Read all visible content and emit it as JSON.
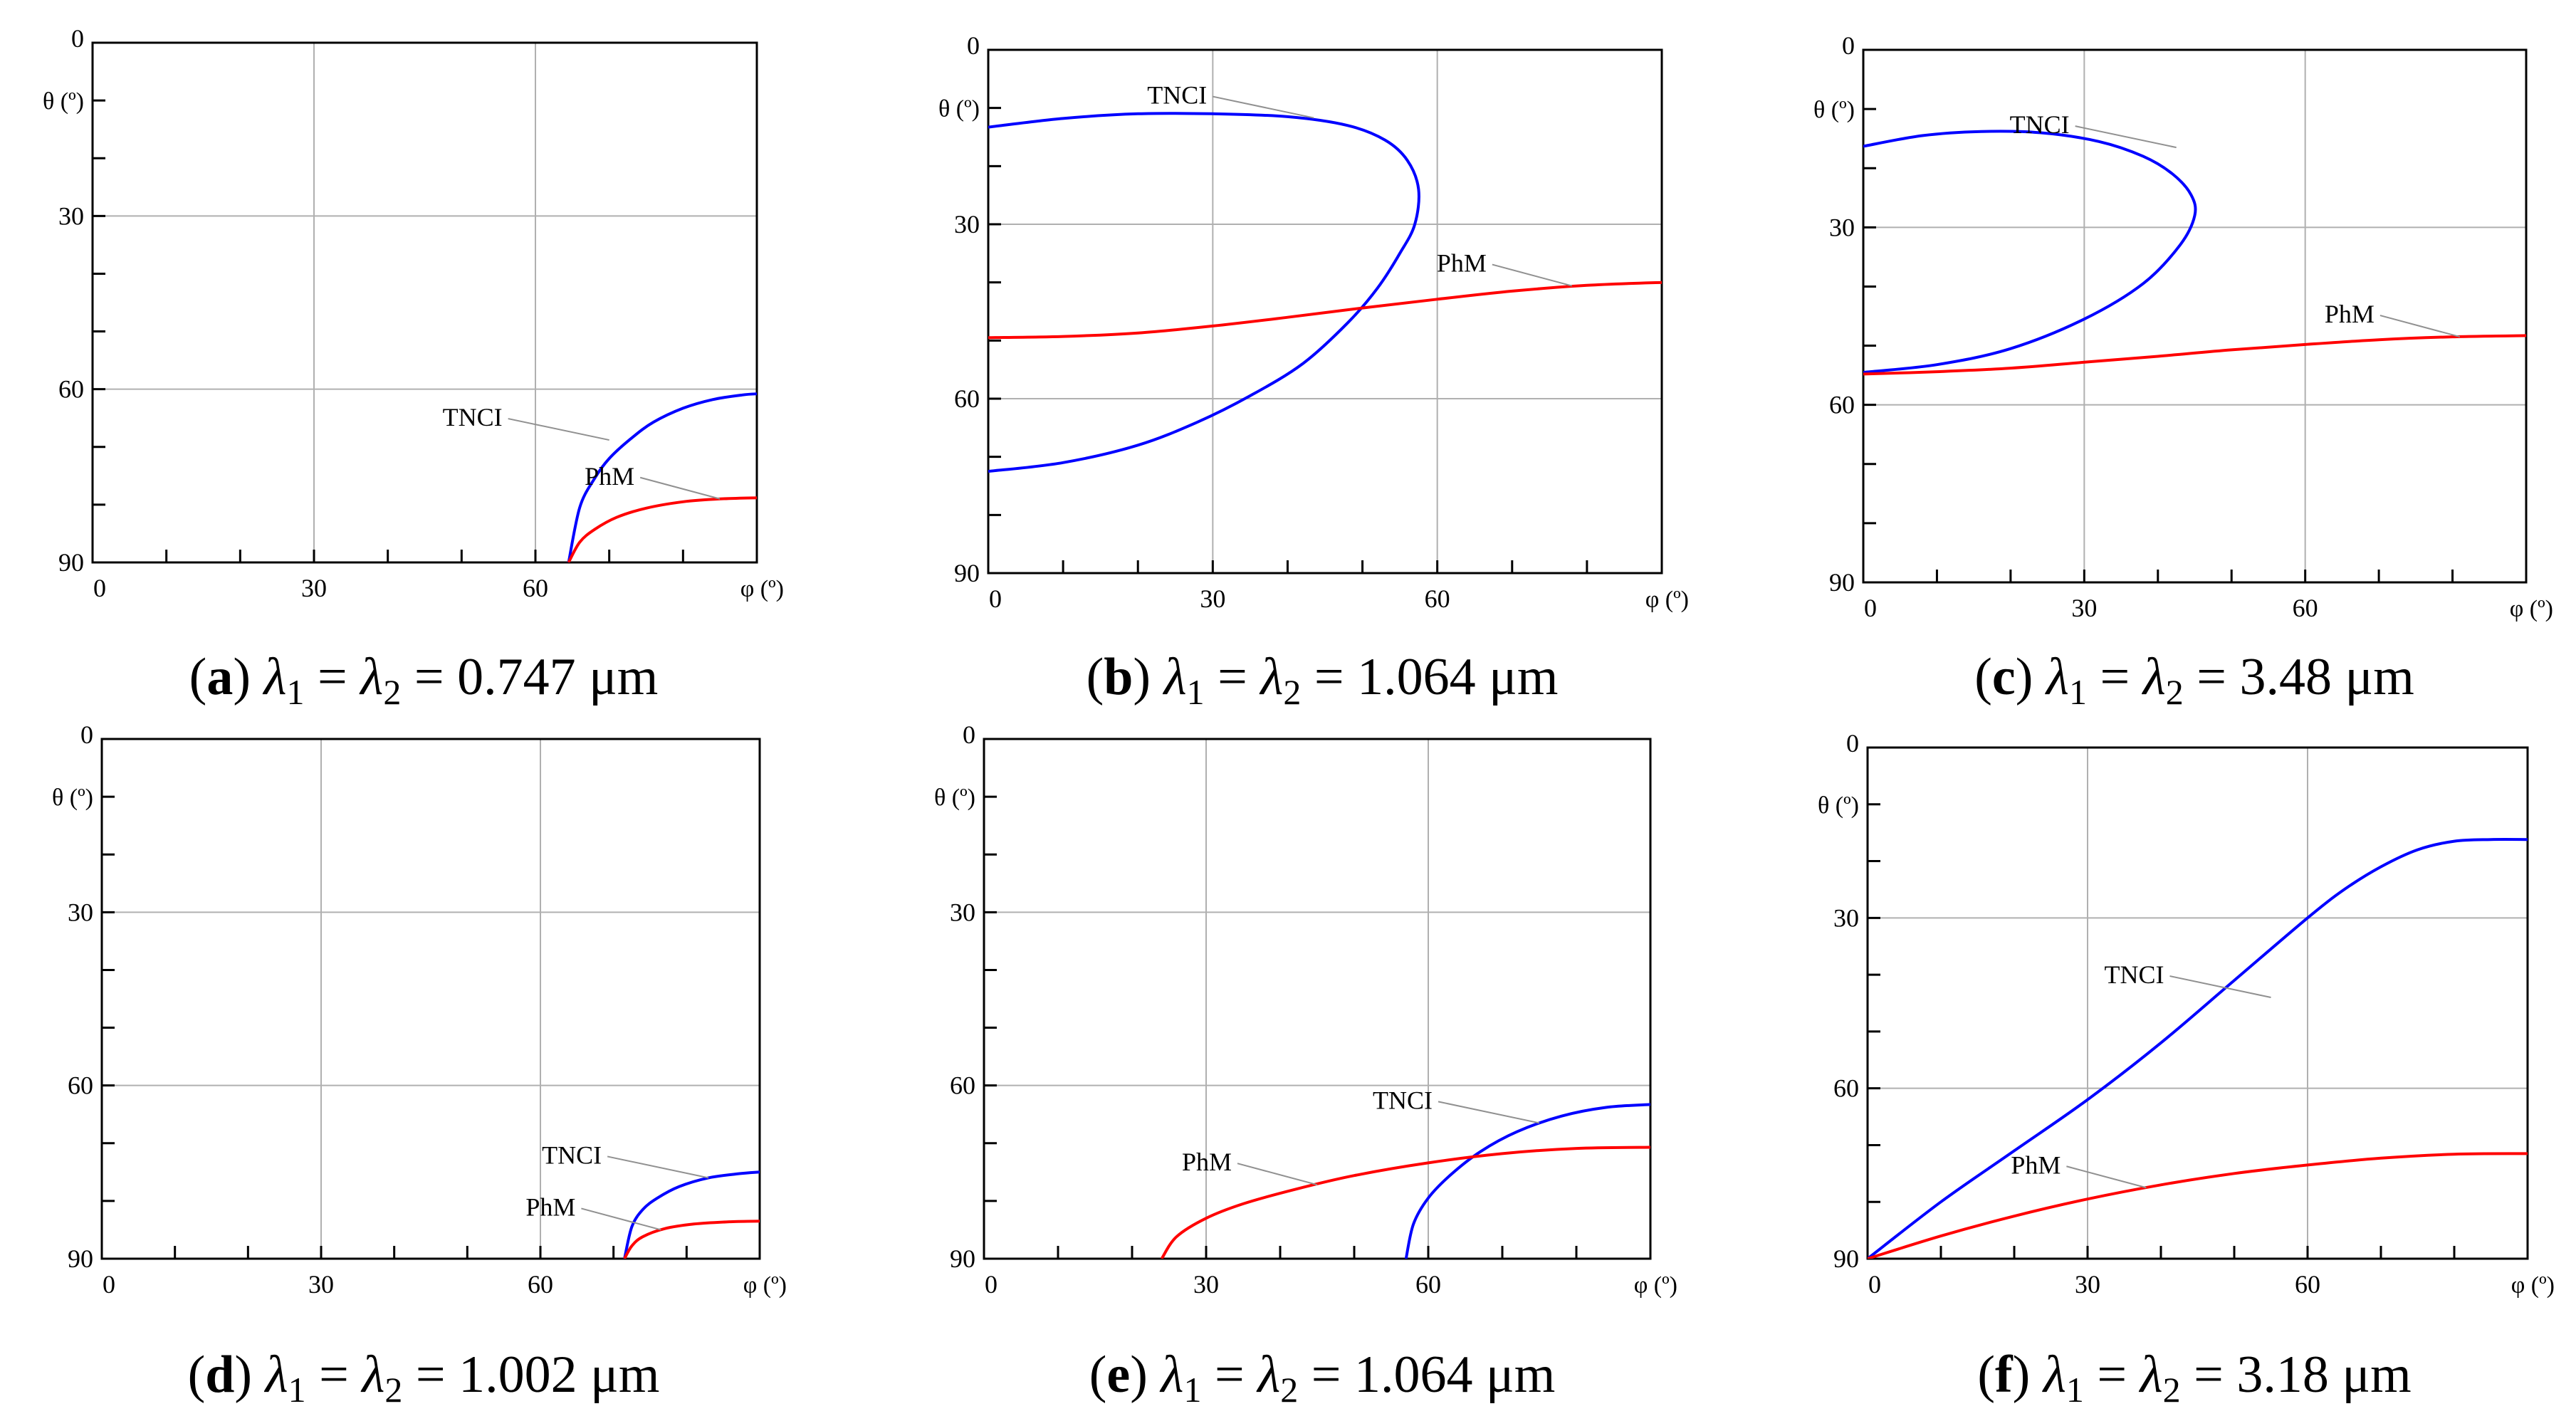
{
  "figure": {
    "captions": [
      {
        "letter": "a",
        "value": "0.747"
      },
      {
        "letter": "b",
        "value": "1.064"
      },
      {
        "letter": "c",
        "value": "3.48"
      },
      {
        "letter": "d",
        "value": "1.002"
      },
      {
        "letter": "e",
        "value": "1.064"
      },
      {
        "letter": "f",
        "value": "3.18"
      }
    ],
    "caption_parts": {
      "lambda": "λ",
      "sub1": "1",
      "sub2": "2",
      "equals": " = ",
      "unit": " μm"
    }
  },
  "chart_data": [
    {
      "type": "line",
      "panel": "a",
      "xlabel": "φ (º)",
      "ylabel": "θ (º)",
      "xlim": [
        0,
        90
      ],
      "ylim": [
        0,
        90
      ],
      "y_inverted": true,
      "xticks": [
        0,
        30,
        60
      ],
      "yticks": [
        0,
        30,
        60,
        90
      ],
      "grid": true,
      "series": [
        {
          "name": "TNCI",
          "color": "#0000ff",
          "x": [
            64.5,
            66,
            68,
            70,
            73,
            76,
            80,
            84,
            88,
            90
          ],
          "y": [
            90,
            80.5,
            75.5,
            72,
            68.5,
            65.7,
            63.3,
            61.8,
            61,
            60.8
          ]
        },
        {
          "name": "PhM",
          "color": "#ff0000",
          "x": [
            64.5,
            66,
            68,
            71,
            75,
            80,
            85,
            90
          ],
          "y": [
            90,
            86.5,
            84.3,
            82.2,
            80.6,
            79.5,
            79,
            78.8
          ]
        }
      ],
      "labels": [
        {
          "text": "TNCI",
          "series": "TNCI",
          "at": [
            70,
            68.8
          ]
        },
        {
          "text": "PhM",
          "series": "PhM",
          "at": [
            85,
            79
          ]
        }
      ]
    },
    {
      "type": "line",
      "panel": "b",
      "xlabel": "φ (º)",
      "ylabel": "θ (º)",
      "xlim": [
        0,
        90
      ],
      "ylim": [
        0,
        90
      ],
      "y_inverted": true,
      "xticks": [
        0,
        30,
        60
      ],
      "yticks": [
        0,
        30,
        60,
        90
      ],
      "grid": true,
      "series": [
        {
          "name": "TNCI",
          "color": "#0000ff",
          "x": [
            0,
            10,
            20,
            30,
            40,
            48,
            53,
            56,
            57.5,
            57,
            55,
            52,
            48,
            42,
            35,
            28,
            20,
            10,
            0
          ],
          "y": [
            13.3,
            11.8,
            11,
            11,
            11.5,
            13,
            15.5,
            19,
            24,
            30,
            35,
            41,
            47,
            54,
            59.5,
            64,
            68,
            71,
            72.5
          ]
        },
        {
          "name": "PhM",
          "color": "#ff0000",
          "x": [
            0,
            10,
            20,
            30,
            40,
            50,
            60,
            70,
            80,
            90
          ],
          "y": [
            49.5,
            49.3,
            48.7,
            47.5,
            46,
            44.4,
            42.9,
            41.5,
            40.5,
            40
          ]
        }
      ],
      "labels": [
        {
          "text": "TNCI",
          "series": "TNCI",
          "at": [
            43.5,
            11.7
          ]
        },
        {
          "text": "PhM",
          "series": "PhM",
          "at": [
            78,
            40.6
          ]
        }
      ]
    },
    {
      "type": "line",
      "panel": "c",
      "xlabel": "φ (º)",
      "ylabel": "θ (º)",
      "xlim": [
        0,
        90
      ],
      "ylim": [
        0,
        90
      ],
      "y_inverted": true,
      "xticks": [
        0,
        30,
        60
      ],
      "yticks": [
        0,
        30,
        60,
        90
      ],
      "grid": true,
      "series": [
        {
          "name": "TNCI",
          "color": "#0000ff",
          "x": [
            0,
            8,
            16,
            24,
            32,
            38,
            42,
            44.5,
            45,
            43,
            38,
            30,
            20,
            10,
            0
          ],
          "y": [
            16.3,
            14.5,
            13.8,
            14,
            15.5,
            18,
            21,
            24.5,
            28,
            33,
            39.5,
            45.5,
            50.5,
            53.2,
            54.5
          ]
        },
        {
          "name": "PhM",
          "color": "#ff0000",
          "x": [
            0,
            10,
            20,
            30,
            40,
            50,
            60,
            70,
            80,
            90
          ],
          "y": [
            54.8,
            54.4,
            53.8,
            52.8,
            51.8,
            50.7,
            49.8,
            49,
            48.5,
            48.3
          ]
        }
      ],
      "labels": [
        {
          "text": "TNCI",
          "series": "TNCI",
          "at": [
            42.5,
            16.5
          ]
        },
        {
          "text": "PhM",
          "series": "PhM",
          "at": [
            81,
            48.5
          ]
        }
      ]
    },
    {
      "type": "line",
      "panel": "d",
      "xlabel": "φ (º)",
      "ylabel": "θ (º)",
      "xlim": [
        0,
        90
      ],
      "ylim": [
        0,
        90
      ],
      "y_inverted": true,
      "xticks": [
        0,
        30,
        60
      ],
      "yticks": [
        0,
        30,
        60,
        90
      ],
      "grid": true,
      "series": [
        {
          "name": "TNCI",
          "color": "#0000ff",
          "x": [
            71.5,
            72.5,
            74,
            76,
            79,
            83,
            87,
            90
          ],
          "y": [
            90,
            84.5,
            81.5,
            79.5,
            77.5,
            76,
            75.3,
            75
          ]
        },
        {
          "name": "PhM",
          "color": "#ff0000",
          "x": [
            71.5,
            72.5,
            74,
            77,
            81,
            86,
            90
          ],
          "y": [
            90,
            87.8,
            86.2,
            84.8,
            84,
            83.6,
            83.5
          ]
        }
      ],
      "labels": [
        {
          "text": "TNCI",
          "series": "TNCI",
          "at": [
            83,
            76
          ]
        },
        {
          "text": "PhM",
          "series": "PhM",
          "at": [
            76.5,
            85
          ]
        }
      ]
    },
    {
      "type": "line",
      "panel": "e",
      "xlabel": "φ (º)",
      "ylabel": "θ (º)",
      "xlim": [
        0,
        90
      ],
      "ylim": [
        0,
        90
      ],
      "y_inverted": true,
      "xticks": [
        0,
        30,
        60
      ],
      "yticks": [
        0,
        30,
        60,
        90
      ],
      "grid": true,
      "series": [
        {
          "name": "TNCI",
          "color": "#0000ff",
          "x": [
            57,
            58,
            60,
            63,
            67,
            72,
            78,
            84,
            90
          ],
          "y": [
            90,
            84,
            79.5,
            75.5,
            71.5,
            68,
            65.3,
            63.8,
            63.3
          ]
        },
        {
          "name": "PhM",
          "color": "#ff0000",
          "x": [
            24,
            26,
            30,
            35,
            42,
            50,
            60,
            70,
            80,
            90
          ],
          "y": [
            90,
            86.2,
            83,
            80.5,
            78,
            75.6,
            73.4,
            71.8,
            70.9,
            70.7
          ]
        }
      ],
      "labels": [
        {
          "text": "TNCI",
          "series": "TNCI",
          "at": [
            75,
            66.5
          ]
        },
        {
          "text": "PhM",
          "series": "PhM",
          "at": [
            45,
            77.2
          ]
        }
      ]
    },
    {
      "type": "line",
      "panel": "f",
      "xlabel": "φ (º)",
      "ylabel": "θ (º)",
      "xlim": [
        0,
        90
      ],
      "ylim": [
        0,
        90
      ],
      "y_inverted": true,
      "xticks": [
        0,
        30,
        60
      ],
      "yticks": [
        0,
        30,
        60,
        90
      ],
      "grid": true,
      "series": [
        {
          "name": "TNCI",
          "color": "#0000ff",
          "x": [
            0,
            10,
            20,
            30,
            40,
            50,
            60,
            65,
            70,
            75,
            80,
            85,
            90
          ],
          "y": [
            90,
            80,
            71,
            62,
            52,
            41,
            30,
            25,
            21,
            18,
            16.5,
            16.2,
            16.2
          ]
        },
        {
          "name": "PhM",
          "color": "#ff0000",
          "x": [
            0,
            10,
            20,
            30,
            40,
            50,
            60,
            70,
            80,
            90
          ],
          "y": [
            90,
            86,
            82.5,
            79.5,
            77,
            75,
            73.5,
            72.3,
            71.6,
            71.5
          ]
        }
      ],
      "labels": [
        {
          "text": "TNCI",
          "series": "TNCI",
          "at": [
            55,
            44
          ]
        },
        {
          "text": "PhM",
          "series": "PhM",
          "at": [
            38,
            77.5
          ]
        }
      ]
    }
  ]
}
